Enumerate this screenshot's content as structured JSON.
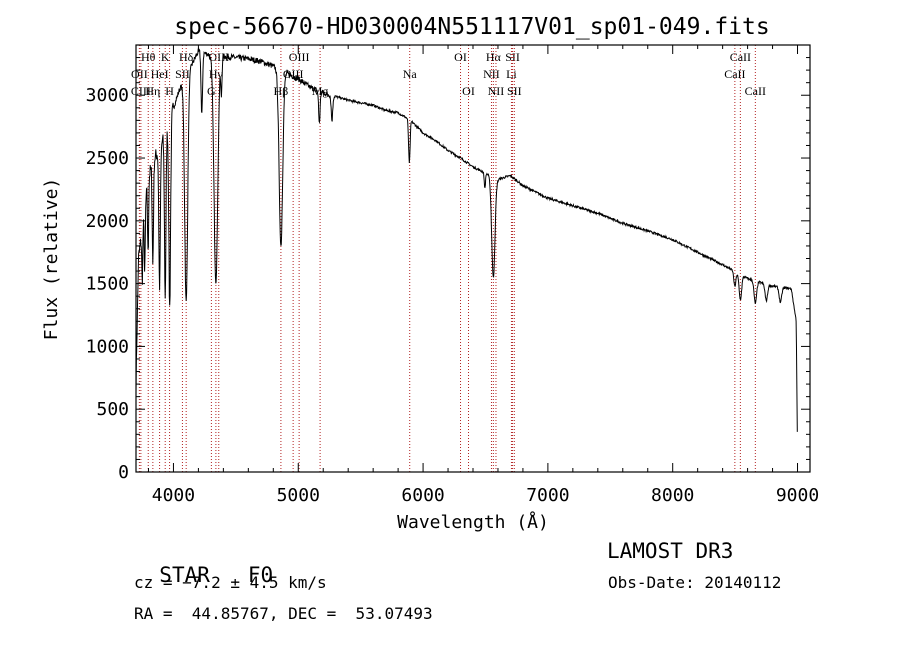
{
  "chart_data": {
    "type": "line",
    "title": "spec-56670-HD030004N551117V01_sp01-049.fits",
    "xlabel": "Wavelength (Å)",
    "ylabel": "Flux (relative)",
    "xlim": [
      3700,
      9100
    ],
    "ylim": [
      0,
      3400
    ],
    "xticks": [
      4000,
      5000,
      6000,
      7000,
      8000,
      9000
    ],
    "yticks": [
      0,
      500,
      1000,
      1500,
      2000,
      2500,
      3000
    ],
    "grid": false,
    "series": [
      {
        "name": "spectrum",
        "continuum": [
          [
            3700,
            700
          ],
          [
            3720,
            1700
          ],
          [
            3760,
            2000
          ],
          [
            3800,
            2350
          ],
          [
            3850,
            2500
          ],
          [
            3900,
            2600
          ],
          [
            3950,
            2750
          ],
          [
            4000,
            2900
          ],
          [
            4050,
            3050
          ],
          [
            4100,
            3150
          ],
          [
            4150,
            3250
          ],
          [
            4200,
            3350
          ],
          [
            4300,
            3320
          ],
          [
            4400,
            3310
          ],
          [
            4500,
            3300
          ],
          [
            4600,
            3290
          ],
          [
            4700,
            3270
          ],
          [
            4800,
            3230
          ],
          [
            4900,
            3180
          ],
          [
            5000,
            3130
          ],
          [
            5100,
            3060
          ],
          [
            5200,
            3020
          ],
          [
            5300,
            2990
          ],
          [
            5400,
            2960
          ],
          [
            5500,
            2940
          ],
          [
            5600,
            2920
          ],
          [
            5700,
            2880
          ],
          [
            5800,
            2860
          ],
          [
            5900,
            2800
          ],
          [
            6000,
            2700
          ],
          [
            6100,
            2640
          ],
          [
            6200,
            2560
          ],
          [
            6300,
            2500
          ],
          [
            6400,
            2430
          ],
          [
            6500,
            2380
          ],
          [
            6600,
            2330
          ],
          [
            6700,
            2360
          ],
          [
            6800,
            2280
          ],
          [
            6900,
            2230
          ],
          [
            7000,
            2180
          ],
          [
            7200,
            2120
          ],
          [
            7400,
            2060
          ],
          [
            7600,
            1980
          ],
          [
            7800,
            1920
          ],
          [
            8000,
            1850
          ],
          [
            8200,
            1750
          ],
          [
            8400,
            1650
          ],
          [
            8600,
            1540
          ],
          [
            8800,
            1480
          ],
          [
            8950,
            1460
          ],
          [
            8990,
            1200
          ],
          [
            9000,
            100
          ]
        ],
        "absorption_lines": [
          [
            3750,
            400,
            4
          ],
          [
            3770,
            500,
            4
          ],
          [
            3797,
            600,
            4
          ],
          [
            3835,
            800,
            5
          ],
          [
            3889,
            1100,
            6
          ],
          [
            3934,
            1300,
            6
          ],
          [
            3970,
            1500,
            7
          ],
          [
            4102,
            1800,
            12
          ],
          [
            4227,
            500,
            6
          ],
          [
            4340,
            1800,
            15
          ],
          [
            4384,
            300,
            5
          ],
          [
            4861,
            1400,
            14
          ],
          [
            5169,
            250,
            6
          ],
          [
            5270,
            200,
            6
          ],
          [
            5890,
            350,
            6
          ],
          [
            6495,
            120,
            5
          ],
          [
            6563,
            800,
            13
          ],
          [
            8498,
            120,
            8
          ],
          [
            8542,
            200,
            10
          ],
          [
            8662,
            180,
            10
          ],
          [
            8750,
            130,
            10
          ],
          [
            8863,
            120,
            10
          ]
        ]
      }
    ],
    "reference_lines": [
      {
        "label": "Hθ",
        "x": 3798,
        "row": 1
      },
      {
        "label": "OII",
        "x": 3727,
        "row": 2
      },
      {
        "label": "CIII",
        "x": 3739,
        "row": 3
      },
      {
        "label": "K",
        "x": 3934,
        "row": 1
      },
      {
        "label": "HeI",
        "x": 3889,
        "row": 2
      },
      {
        "label": "Hη",
        "x": 3835,
        "row": 3
      },
      {
        "label": "Hδ",
        "x": 4102,
        "row": 1
      },
      {
        "label": "SII",
        "x": 4072,
        "row": 2
      },
      {
        "label": "H",
        "x": 3969,
        "row": 3
      },
      {
        "label": "OIII",
        "x": 4363,
        "row": 1
      },
      {
        "label": "Hγ",
        "x": 4340,
        "row": 2
      },
      {
        "label": "G",
        "x": 4304,
        "row": 3
      },
      {
        "label": "OIII",
        "x": 5007,
        "row": 1
      },
      {
        "label": "OIII",
        "x": 4959,
        "row": 2
      },
      {
        "label": "Hβ",
        "x": 4861,
        "row": 3
      },
      {
        "label": "Mg",
        "x": 5175,
        "row": 3
      },
      {
        "label": "Na",
        "x": 5893,
        "row": 2
      },
      {
        "label": "OI",
        "x": 6300,
        "row": 1
      },
      {
        "label": "OI",
        "x": 6364,
        "row": 3
      },
      {
        "label": "Hα",
        "x": 6563,
        "row": 1
      },
      {
        "label": "NII",
        "x": 6548,
        "row": 2
      },
      {
        "label": "NII",
        "x": 6584,
        "row": 3
      },
      {
        "label": "SII",
        "x": 6717,
        "row": 1
      },
      {
        "label": "Li",
        "x": 6708,
        "row": 2
      },
      {
        "label": "SII",
        "x": 6731,
        "row": 3
      },
      {
        "label": "CaII",
        "x": 8542,
        "row": 1
      },
      {
        "label": "CaII",
        "x": 8498,
        "row": 2
      },
      {
        "label": "CaII",
        "x": 8662,
        "row": 3
      }
    ],
    "colors": {
      "spectrum": "#000000",
      "reference_line": "#b22222",
      "axes": "#000000"
    }
  },
  "info": {
    "class_label": "STAR",
    "subclass": "F0",
    "survey": "LAMOST DR3",
    "redshift": "cz = −7.2 ± 4.5 km/s",
    "obs_date": "Obs-Date: 20140112",
    "coords": "RA =  44.85767, DEC =  53.07493"
  }
}
